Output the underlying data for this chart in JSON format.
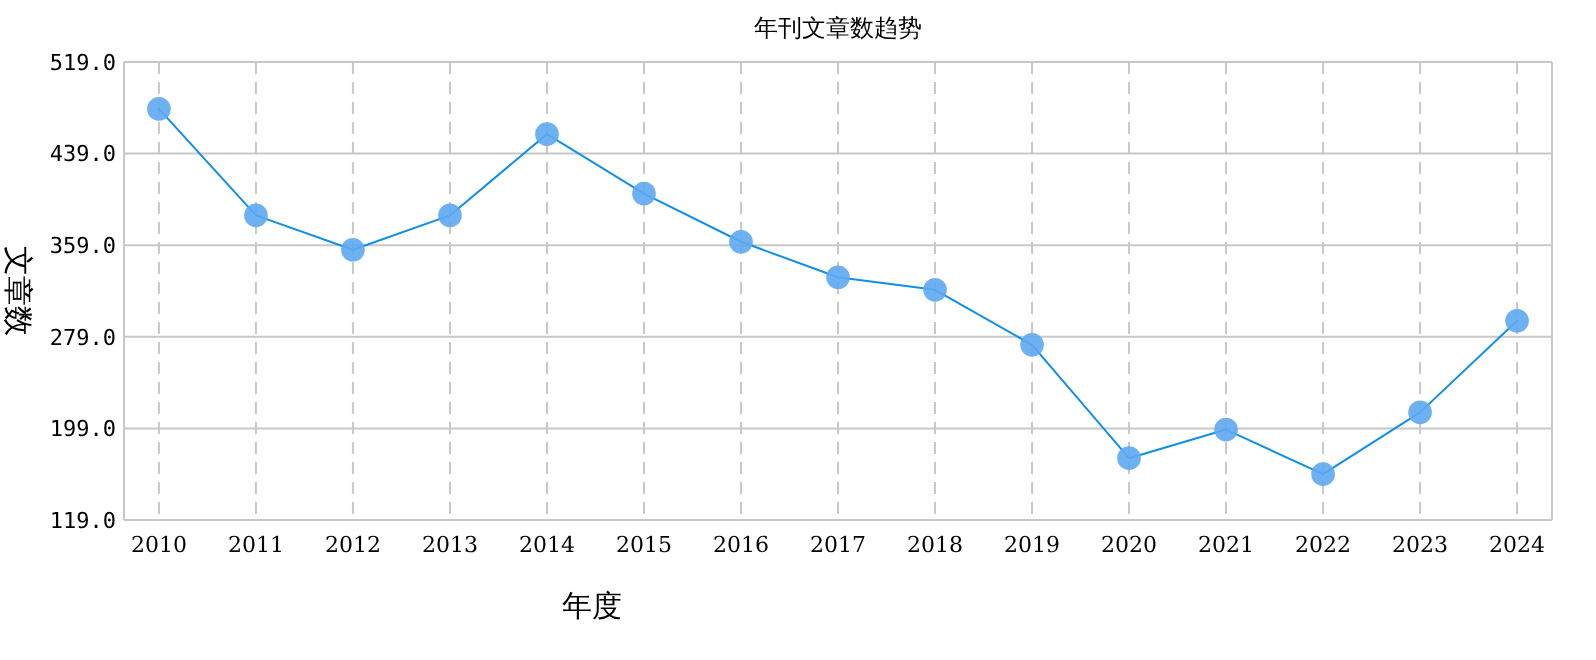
{
  "chart_data": {
    "type": "line",
    "title": "年刊文章数趋势",
    "xlabel": "年度",
    "ylabel": "文章数",
    "categories": [
      "2010",
      "2011",
      "2012",
      "2013",
      "2014",
      "2015",
      "2016",
      "2017",
      "2018",
      "2019",
      "2020",
      "2021",
      "2022",
      "2023",
      "2024"
    ],
    "series": [
      {
        "color": "#0f8fe8",
        "values": [
          478,
          385,
          355,
          385,
          456,
          404,
          362,
          331,
          320,
          272,
          173,
          198,
          159,
          213,
          293
        ]
      }
    ],
    "ylim": [
      119,
      519
    ],
    "yticks": [
      {
        "value": 119,
        "label": "119.0"
      },
      {
        "value": 199,
        "label": "199.0"
      },
      {
        "value": 279,
        "label": "279.0"
      },
      {
        "value": 359,
        "label": "359.0"
      },
      {
        "value": 439,
        "label": "439.0"
      },
      {
        "value": 519,
        "label": "519.0"
      }
    ],
    "grid": true,
    "marker": "circle",
    "line_style": "solid"
  }
}
